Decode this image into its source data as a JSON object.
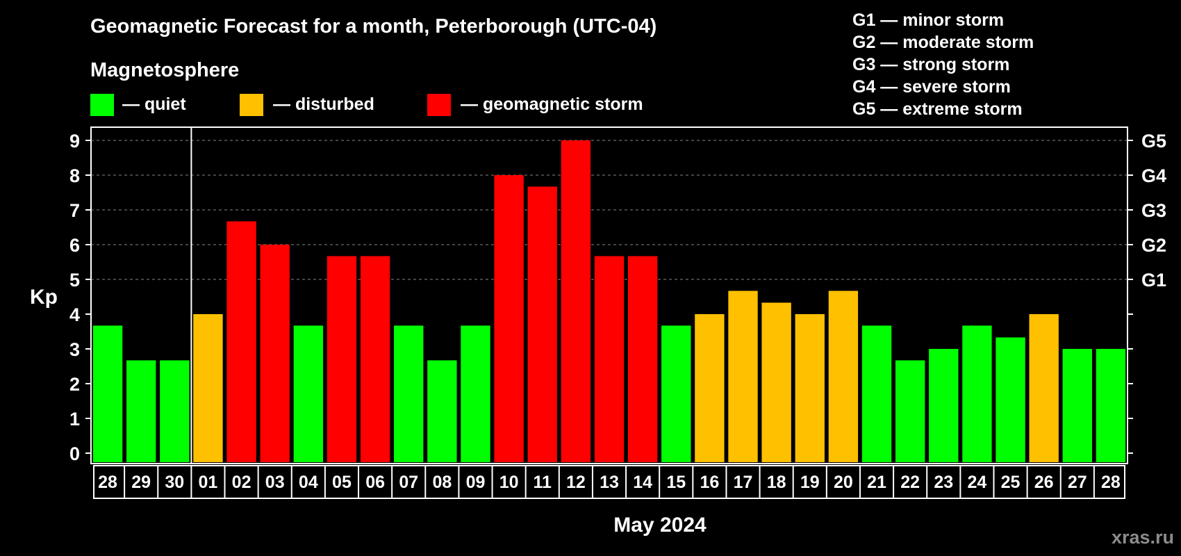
{
  "title": "Geomagnetic Forecast for a month, Peterborough (UTC-04)",
  "legend": {
    "heading": "Magnetosphere",
    "items": [
      {
        "label": "— quiet",
        "color": "#00ff00"
      },
      {
        "label": "— disturbed",
        "color": "#ffc000"
      },
      {
        "label": "— geomagnetic storm",
        "color": "#ff0000"
      }
    ]
  },
  "storm_levels": [
    {
      "code": "G1",
      "label": "G1 — minor storm"
    },
    {
      "code": "G2",
      "label": "G2 — moderate storm"
    },
    {
      "code": "G3",
      "label": "G3 — strong storm"
    },
    {
      "code": "G4",
      "label": "G4 — severe storm"
    },
    {
      "code": "G5",
      "label": "G5 — extreme storm"
    }
  ],
  "watermark": "xras.ru",
  "colors": {
    "quiet": "#00ff00",
    "disturbed": "#ffc000",
    "storm": "#ff0000",
    "axis": "#ffffff",
    "grid": "#888888"
  },
  "chart_data": {
    "type": "bar",
    "title": "Geomagnetic Forecast for a month, Peterborough (UTC-04)",
    "ylabel": "Kp",
    "xlabel": "May 2024",
    "ylim": [
      0,
      9
    ],
    "yticks": [
      "0",
      "1",
      "2",
      "3",
      "4",
      "5",
      "6",
      "7",
      "8",
      "9"
    ],
    "right_axis_labels": [
      {
        "kp": 5,
        "label": "G1"
      },
      {
        "kp": 6,
        "label": "G2"
      },
      {
        "kp": 7,
        "label": "G3"
      },
      {
        "kp": 8,
        "label": "G4"
      },
      {
        "kp": 9,
        "label": "G5"
      }
    ],
    "month_divider_after_index": 2,
    "categories": [
      "28",
      "29",
      "30",
      "01",
      "02",
      "03",
      "04",
      "05",
      "06",
      "07",
      "08",
      "09",
      "10",
      "11",
      "12",
      "13",
      "14",
      "15",
      "16",
      "17",
      "18",
      "19",
      "20",
      "21",
      "22",
      "23",
      "24",
      "25",
      "26",
      "27",
      "28"
    ],
    "values": [
      3.67,
      2.67,
      2.67,
      4.0,
      6.67,
      6.0,
      3.67,
      5.67,
      5.67,
      3.67,
      2.67,
      3.67,
      8.0,
      7.67,
      9.0,
      5.67,
      5.67,
      3.67,
      4.0,
      4.67,
      4.33,
      4.0,
      4.67,
      3.67,
      2.67,
      3.0,
      3.67,
      3.33,
      4.0,
      3.0,
      3.0
    ],
    "levels": [
      "quiet",
      "quiet",
      "quiet",
      "disturbed",
      "storm",
      "storm",
      "quiet",
      "storm",
      "storm",
      "quiet",
      "quiet",
      "quiet",
      "storm",
      "storm",
      "storm",
      "storm",
      "storm",
      "quiet",
      "disturbed",
      "disturbed",
      "disturbed",
      "disturbed",
      "disturbed",
      "quiet",
      "quiet",
      "quiet",
      "quiet",
      "quiet",
      "disturbed",
      "quiet",
      "quiet"
    ],
    "grid": true
  }
}
